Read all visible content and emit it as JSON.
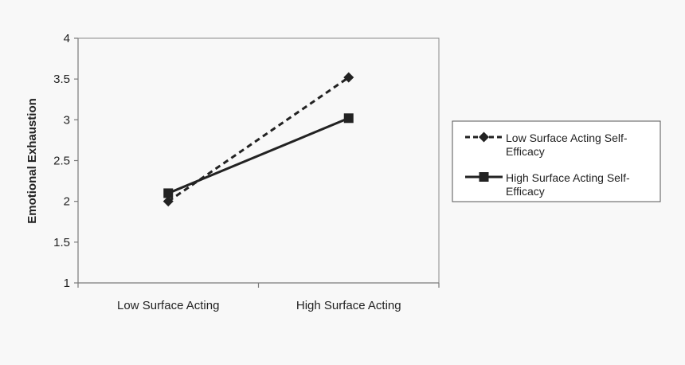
{
  "chart_data": {
    "type": "line",
    "title": "",
    "xlabel": "",
    "ylabel": "Emotional Exhaustion",
    "categories": [
      "Low Surface Acting",
      "High Surface Acting"
    ],
    "ylim": [
      1,
      4
    ],
    "yticks": [
      "1",
      "1.5",
      "2",
      "2.5",
      "3",
      "3.5",
      "4"
    ],
    "grid": false,
    "legend_position": "right",
    "series": [
      {
        "name": "Low Surface Acting Self-Efficacy",
        "name_lines": [
          "Low Surface Acting Self-",
          "Efficacy"
        ],
        "values": [
          2.0,
          3.52
        ],
        "line_style": "dashed",
        "marker": "diamond",
        "color": "#222222"
      },
      {
        "name": "High Surface Acting Self-Efficacy",
        "name_lines": [
          "High Surface Acting Self-",
          "Efficacy"
        ],
        "values": [
          2.1,
          3.02
        ],
        "line_style": "solid",
        "marker": "square",
        "color": "#222222"
      }
    ]
  }
}
